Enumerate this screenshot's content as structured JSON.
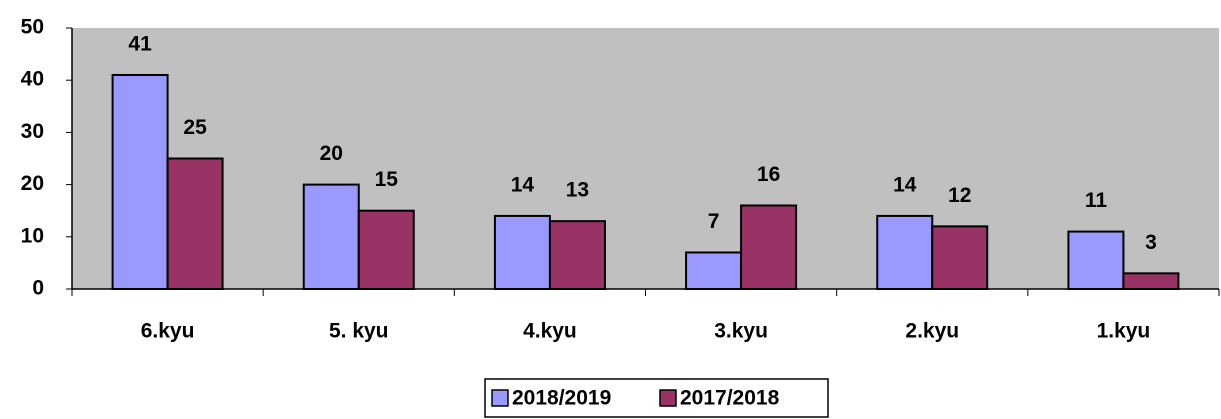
{
  "chart_data": {
    "type": "bar",
    "categories": [
      "6.kyu",
      "5. kyu",
      "4.kyu",
      "3.kyu",
      "2.kyu",
      "1.kyu"
    ],
    "series": [
      {
        "name": "2018/2019",
        "color": "#9999ff",
        "values": [
          41,
          20,
          14,
          7,
          14,
          11
        ]
      },
      {
        "name": "2017/2018",
        "color": "#993366",
        "values": [
          25,
          15,
          13,
          16,
          12,
          3
        ]
      }
    ],
    "ylim": [
      0,
      50
    ],
    "yticks": [
      0,
      10,
      20,
      30,
      40,
      50
    ],
    "plot_background": "#c0c0c0",
    "legend": "bottom"
  }
}
